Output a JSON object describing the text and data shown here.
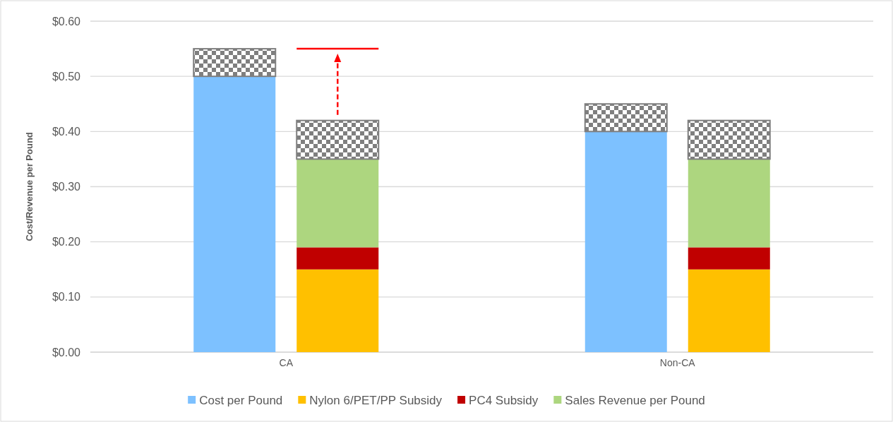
{
  "chart_data": {
    "type": "bar",
    "stacked": true,
    "ylabel": "Cost/Revenue per Pound",
    "categories": [
      null,
      null,
      null,
      null
    ],
    "series": [
      {
        "name": "Cost per Pound",
        "color": "#7dc1ff",
        "values": [
          0.5,
          null,
          0.4,
          null
        ]
      },
      {
        "name": "Nylon 6/PET/PP Subsidy",
        "color": "#ffc000",
        "values": [
          null,
          0.15,
          null,
          0.15
        ]
      },
      {
        "name": "PC4 Subsidy",
        "color": "#c00000",
        "values": [
          null,
          0.04,
          null,
          0.04
        ]
      },
      {
        "name": "Sales Revenue per Pound",
        "color": "#add67f",
        "values": [
          null,
          0.16,
          null,
          0.16
        ]
      },
      {
        "color": "#7f7f7f",
        "values": [
          0.05,
          0.07,
          0.05,
          0.07
        ]
      }
    ],
    "annotations": [
      "CA",
      "Non-CA"
    ],
    "ylim": [
      0,
      0.6
    ],
    "yticks": [
      {
        "value": 0,
        "label": "$0.00"
      },
      {
        "value": 0.1,
        "label": "$0.10"
      },
      {
        "value": 0.2,
        "label": "$0.20"
      },
      {
        "value": 0.3,
        "label": "$0.30"
      },
      {
        "value": 0.4,
        "label": "$0.40"
      },
      {
        "value": 0.5,
        "label": "$0.50"
      },
      {
        "value": 0.6,
        "label": "$0.60"
      }
    ],
    "grid": "y",
    "legend": "bottom"
  }
}
